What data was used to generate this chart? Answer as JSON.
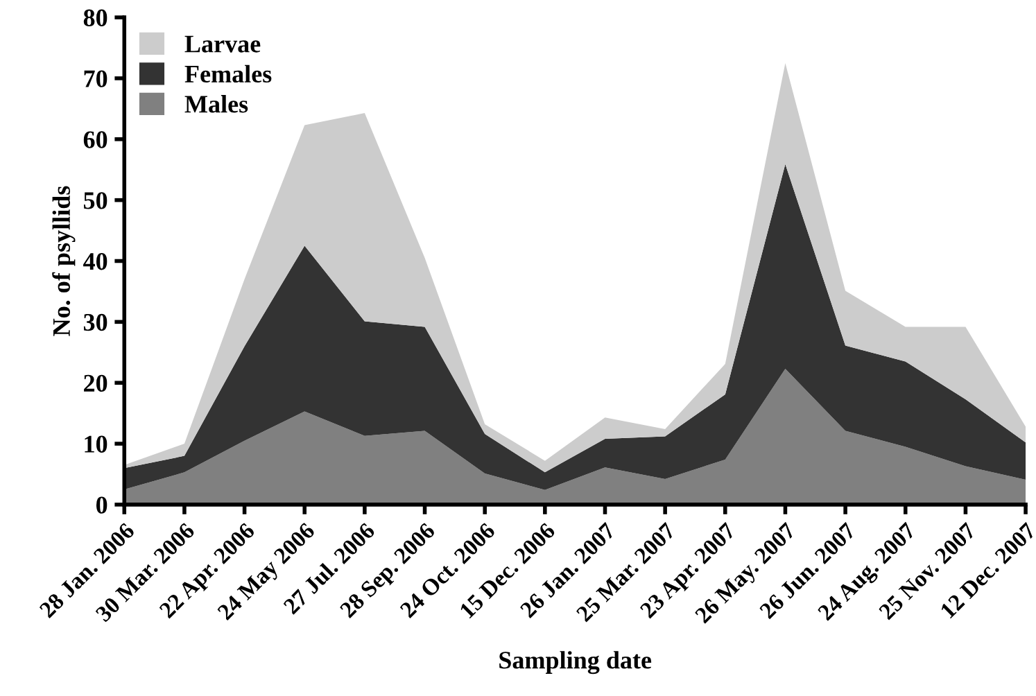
{
  "chart_data": {
    "type": "area",
    "stacked": true,
    "xlabel": "Sampling date",
    "ylabel": "No. of psyllids",
    "categories": [
      "28 Jan. 2006",
      "30 Mar. 2006",
      "22 Apr. 2006",
      "24 May 2006",
      "27 Jul. 2006",
      "28 Sep. 2006",
      "24 Oct. 2006",
      "15 Dec. 2006",
      "26 Jan. 2007",
      "25 Mar. 2007",
      "23 Apr. 2007",
      "26 May. 2007",
      "26 Jun. 2007",
      "24 Aug. 2007",
      "25 Nov. 2007",
      "12 Dec. 2007"
    ],
    "series": [
      {
        "name": "Males",
        "color": "#808080",
        "values": [
          2.5,
          5.3,
          10.5,
          15.3,
          11.3,
          12.1,
          5.1,
          2.4,
          6.1,
          4.2,
          7.4,
          22.3,
          12.1,
          9.5,
          6.3,
          4.1
        ]
      },
      {
        "name": "Females",
        "color": "#333333",
        "values": [
          3.5,
          2.7,
          15.5,
          27.2,
          18.8,
          17.1,
          6.5,
          2.9,
          4.7,
          7.0,
          10.7,
          33.6,
          14.0,
          14.0,
          11.0,
          6.1
        ]
      },
      {
        "name": "Larvae",
        "color": "#cccccc",
        "values": [
          0.5,
          2.0,
          11.0,
          19.8,
          34.2,
          11.3,
          1.6,
          1.9,
          3.5,
          1.2,
          5.0,
          16.6,
          9.0,
          5.7,
          11.9,
          2.6
        ]
      }
    ],
    "ylim": [
      0,
      80
    ],
    "yticks": [
      0,
      10,
      20,
      30,
      40,
      50,
      60,
      70,
      80
    ],
    "grid": false,
    "legend": "top left"
  }
}
